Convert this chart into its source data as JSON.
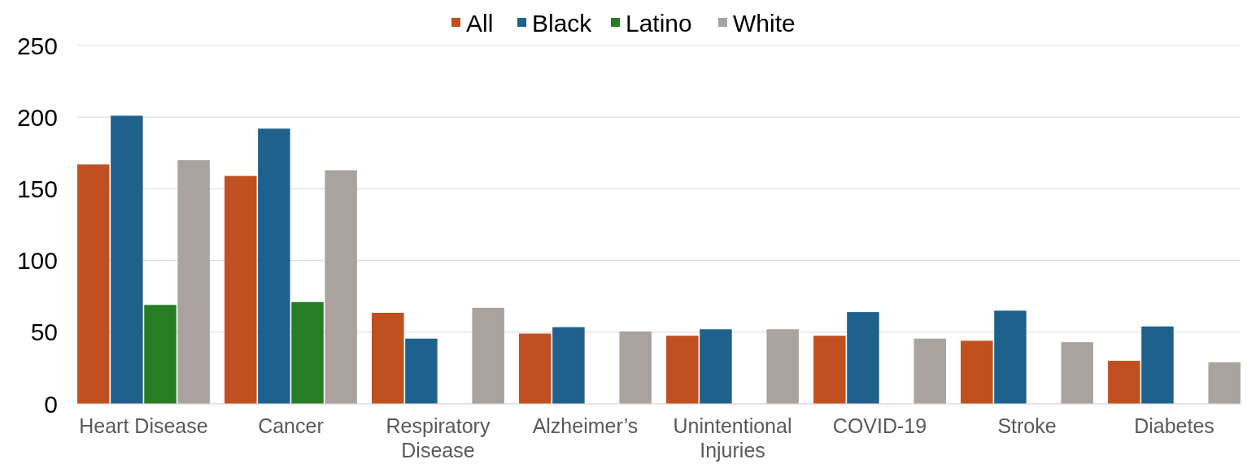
{
  "chart_data": {
    "type": "bar",
    "categories": [
      "Heart Disease",
      "Cancer",
      "Respiratory Disease",
      "Alzheimer’s",
      "Unintentional Injuries",
      "COVID-19",
      "Stroke",
      "Diabetes"
    ],
    "series": [
      {
        "name": "All",
        "color": "#c0501f",
        "values": [
          167,
          159,
          63.5,
          49,
          47.5,
          47.5,
          44,
          30
        ]
      },
      {
        "name": "Black",
        "color": "#1f618d",
        "values": [
          201,
          192,
          45.5,
          53.5,
          52,
          64,
          65,
          54
        ]
      },
      {
        "name": "Latino",
        "color": "#267d23",
        "values": [
          69,
          71,
          null,
          null,
          null,
          null,
          null,
          null
        ]
      },
      {
        "name": "White",
        "color": "#aaa29f",
        "values": [
          170,
          163,
          67,
          50.5,
          52,
          45.5,
          43,
          29
        ]
      }
    ],
    "ylim": [
      0,
      250
    ],
    "yticks": [
      0,
      50,
      100,
      150,
      200,
      250
    ],
    "grid": "y",
    "legend": "top"
  }
}
